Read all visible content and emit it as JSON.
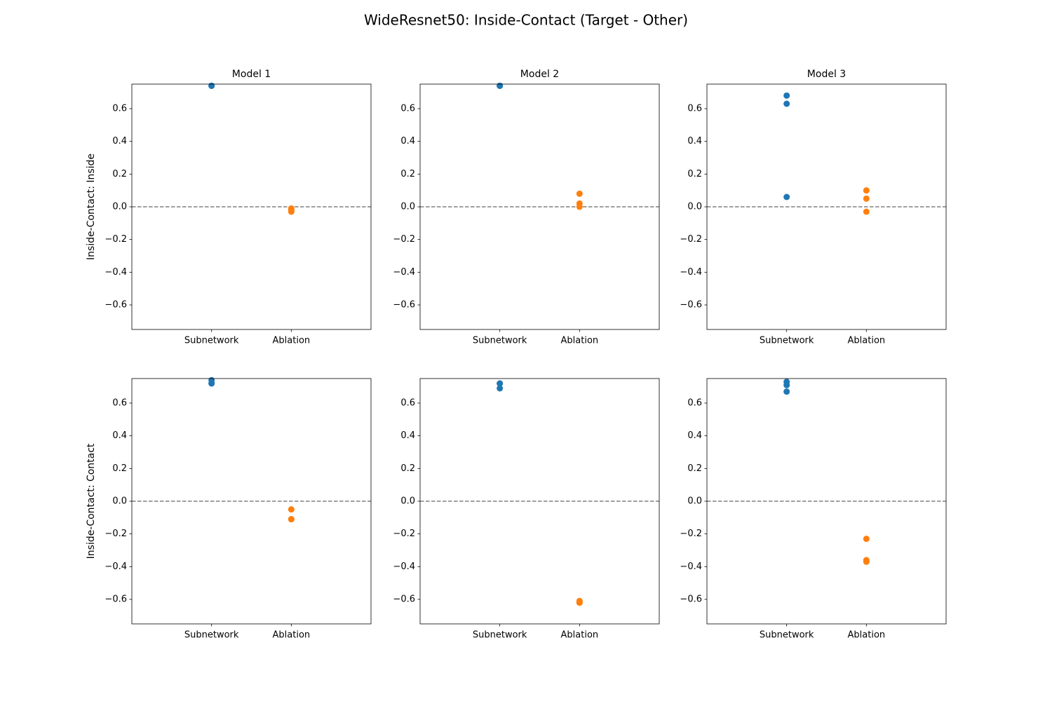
{
  "title": "WideResnet50: Inside-Contact (Target - Other)",
  "chart_data": [
    {
      "type": "strip",
      "title": "Model 1",
      "ylabel": "Inside-Contact: Inside",
      "categories": [
        "Subnetwork",
        "Ablation"
      ],
      "colors": [
        "#1f77b4",
        "#ff7f0e"
      ],
      "values": [
        [
          0.74,
          0.74,
          0.74
        ],
        [
          -0.01,
          -0.02,
          -0.03
        ]
      ],
      "xlim": [
        -1,
        2
      ],
      "ylim": [
        -0.75,
        0.75
      ],
      "yticks": [
        {
          "value": -0.6,
          "label": "−0.6"
        },
        {
          "value": -0.4,
          "label": "−0.4"
        },
        {
          "value": -0.2,
          "label": "−0.2"
        },
        {
          "value": 0,
          "label": "0.0"
        },
        0.2,
        0.4,
        0.6
      ],
      "hline": 0
    },
    {
      "type": "strip",
      "title": "Model 2",
      "categories": [
        "Subnetwork",
        "Ablation"
      ],
      "colors": [
        "#1f77b4",
        "#ff7f0e"
      ],
      "values": [
        [
          0.74,
          0.74,
          0.74
        ],
        [
          0.08,
          0.02,
          0.0
        ]
      ],
      "xlim": [
        -1,
        2
      ],
      "ylim": [
        -0.75,
        0.75
      ],
      "yticks": [
        {
          "value": -0.6,
          "label": "−0.6"
        },
        {
          "value": -0.4,
          "label": "−0.4"
        },
        {
          "value": -0.2,
          "label": "−0.2"
        },
        {
          "value": 0,
          "label": "0.0"
        },
        0.2,
        0.4,
        0.6
      ],
      "hline": 0
    },
    {
      "type": "strip",
      "title": "Model 3",
      "categories": [
        "Subnetwork",
        "Ablation"
      ],
      "colors": [
        "#1f77b4",
        "#ff7f0e"
      ],
      "values": [
        [
          0.68,
          0.63,
          0.06
        ],
        [
          0.1,
          0.05,
          -0.03
        ]
      ],
      "xlim": [
        -1,
        2
      ],
      "ylim": [
        -0.75,
        0.75
      ],
      "yticks": [
        {
          "value": -0.6,
          "label": "−0.6"
        },
        {
          "value": -0.4,
          "label": "−0.4"
        },
        {
          "value": -0.2,
          "label": "−0.2"
        },
        {
          "value": 0,
          "label": "0.0"
        },
        0.2,
        0.4,
        0.6
      ],
      "hline": 0
    },
    {
      "type": "strip",
      "ylabel": "Inside-Contact: Contact",
      "categories": [
        "Subnetwork",
        "Ablation"
      ],
      "colors": [
        "#1f77b4",
        "#ff7f0e"
      ],
      "values": [
        [
          0.74,
          0.72,
          0.72
        ],
        [
          -0.05,
          -0.11,
          -0.11
        ]
      ],
      "xlim": [
        -1,
        2
      ],
      "ylim": [
        -0.75,
        0.75
      ],
      "yticks": [
        {
          "value": -0.6,
          "label": "−0.6"
        },
        {
          "value": -0.4,
          "label": "−0.4"
        },
        {
          "value": -0.2,
          "label": "−0.2"
        },
        {
          "value": 0,
          "label": "0.0"
        },
        0.2,
        0.4,
        0.6
      ],
      "hline": 0
    },
    {
      "type": "strip",
      "categories": [
        "Subnetwork",
        "Ablation"
      ],
      "colors": [
        "#1f77b4",
        "#ff7f0e"
      ],
      "values": [
        [
          0.72,
          0.72,
          0.69
        ],
        [
          -0.61,
          -0.62,
          -0.62
        ]
      ],
      "xlim": [
        -1,
        2
      ],
      "ylim": [
        -0.75,
        0.75
      ],
      "yticks": [
        {
          "value": -0.6,
          "label": "−0.6"
        },
        {
          "value": -0.4,
          "label": "−0.4"
        },
        {
          "value": -0.2,
          "label": "−0.2"
        },
        {
          "value": 0,
          "label": "0.0"
        },
        0.2,
        0.4,
        0.6
      ],
      "hline": 0
    },
    {
      "type": "strip",
      "categories": [
        "Subnetwork",
        "Ablation"
      ],
      "colors": [
        "#1f77b4",
        "#ff7f0e"
      ],
      "values": [
        [
          0.73,
          0.71,
          0.67
        ],
        [
          -0.23,
          -0.36,
          -0.37
        ]
      ],
      "xlim": [
        -1,
        2
      ],
      "ylim": [
        -0.75,
        0.75
      ],
      "yticks": [
        {
          "value": -0.6,
          "label": "−0.6"
        },
        {
          "value": -0.4,
          "label": "−0.4"
        },
        {
          "value": -0.2,
          "label": "−0.2"
        },
        {
          "value": 0,
          "label": "0.0"
        },
        0.2,
        0.4,
        0.6
      ],
      "hline": 0
    }
  ]
}
